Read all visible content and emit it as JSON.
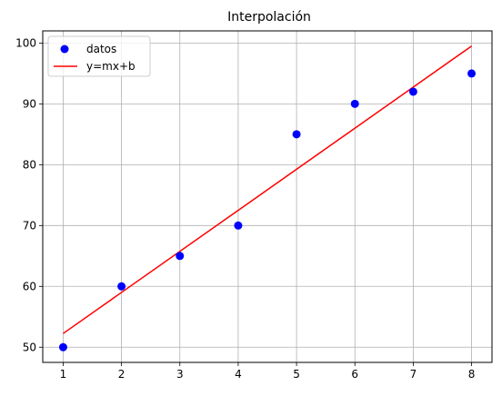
{
  "chart_data": {
    "type": "scatter",
    "title": "Interpolación",
    "xlabel": "",
    "ylabel": "",
    "xlim": [
      0.65,
      8.35
    ],
    "ylim": [
      47.5,
      102.0
    ],
    "xticks": [
      1,
      2,
      3,
      4,
      5,
      6,
      7,
      8
    ],
    "yticks": [
      50,
      60,
      70,
      80,
      90,
      100
    ],
    "grid": true,
    "legend_position": "upper left",
    "series": [
      {
        "name": "datos",
        "kind": "scatter",
        "color": "#0000ff",
        "x": [
          1,
          2,
          3,
          4,
          5,
          6,
          7,
          8
        ],
        "y": [
          50,
          60,
          65,
          70,
          85,
          90,
          92,
          95
        ]
      },
      {
        "name": "y=mx+b",
        "kind": "line",
        "color": "#ff0000",
        "x": [
          1,
          8
        ],
        "y": [
          52.25,
          99.5
        ]
      }
    ]
  }
}
